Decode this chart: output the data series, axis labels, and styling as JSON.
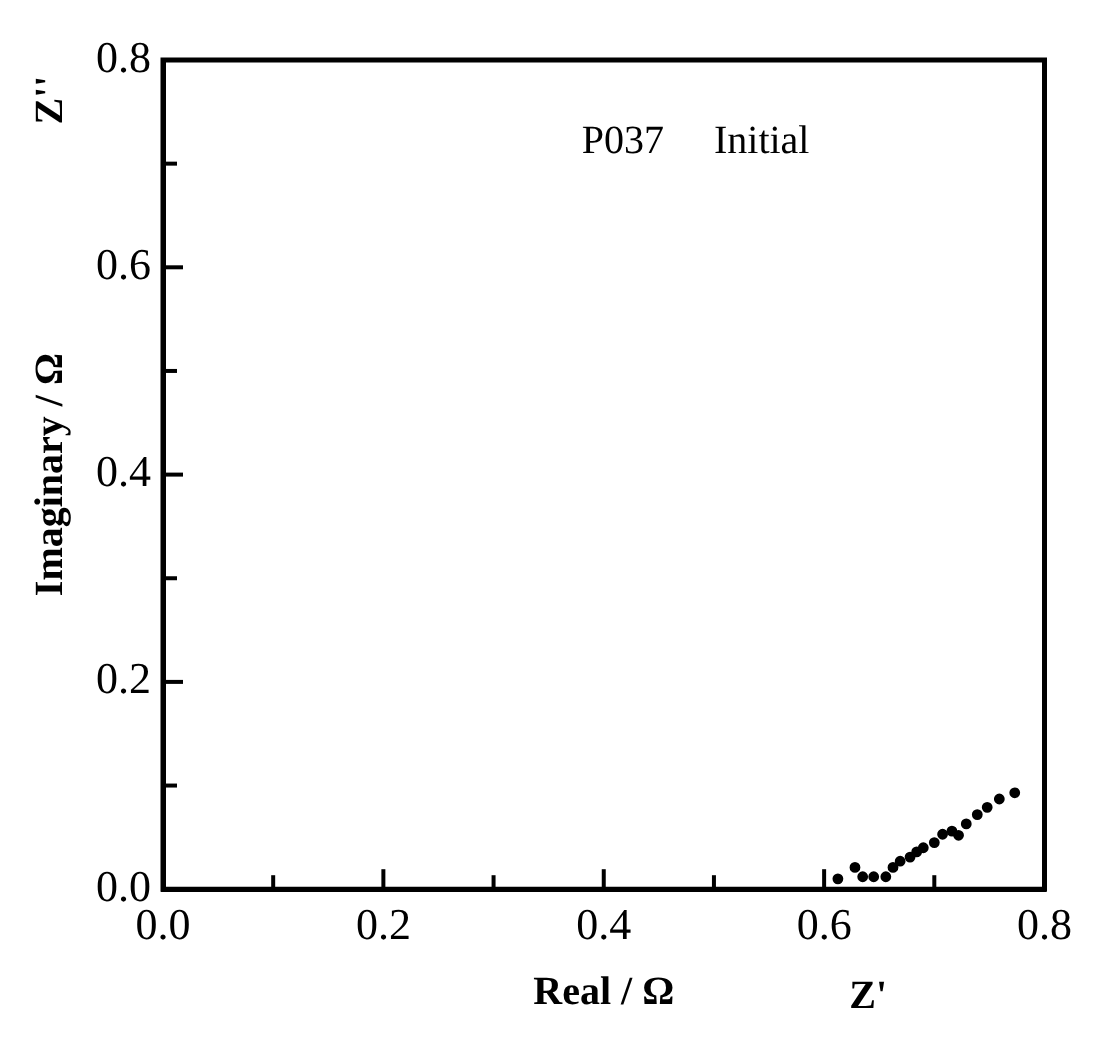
{
  "chart_data": {
    "type": "scatter",
    "xlabel": "Real / Ω",
    "ylabel": "Imaginary / Ω",
    "annotations": [
      "P037     Initial",
      "Z''",
      "Z'"
    ],
    "x": [
      0.6125,
      0.628,
      0.635,
      0.645,
      0.656,
      0.6625,
      0.669,
      0.678,
      0.684,
      0.69,
      0.7,
      0.7075,
      0.716,
      0.722,
      0.729,
      0.739,
      0.748,
      0.759,
      0.773
    ],
    "values": [
      0.01,
      0.021,
      0.012,
      0.012,
      0.012,
      0.021,
      0.027,
      0.031,
      0.036,
      0.04,
      0.045,
      0.053,
      0.056,
      0.052,
      0.063,
      0.072,
      0.079,
      0.087,
      0.093
    ],
    "color": "#000000",
    "marker": "circle",
    "grid": false,
    "legend": false,
    "xlim": [
      0,
      0.8
    ],
    "ylim": [
      0,
      0.8
    ],
    "xticks": [
      {
        "value": 0,
        "label": "0.0"
      },
      {
        "value": 0.1,
        "label": null
      },
      {
        "value": 0.2,
        "label": "0.2"
      },
      {
        "value": 0.3,
        "label": null
      },
      {
        "value": 0.4,
        "label": "0.4"
      },
      {
        "value": 0.5,
        "label": null
      },
      {
        "value": 0.6,
        "label": "0.6"
      },
      {
        "value": 0.7,
        "label": null
      },
      {
        "value": 0.8,
        "label": "0.8"
      }
    ],
    "yticks": [
      {
        "value": 0,
        "label": "0.0"
      },
      {
        "value": 0.1,
        "label": null
      },
      {
        "value": 0.2,
        "label": "0.2"
      },
      {
        "value": 0.3,
        "label": null
      },
      {
        "value": 0.4,
        "label": "0.4"
      },
      {
        "value": 0.5,
        "label": null
      },
      {
        "value": 0.6,
        "label": "0.6"
      },
      {
        "value": 0.7,
        "label": null
      },
      {
        "value": 0.8,
        "label": "0.8"
      }
    ]
  }
}
